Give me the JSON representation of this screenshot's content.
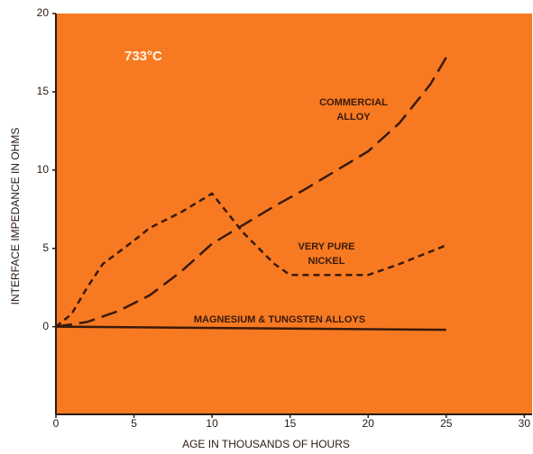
{
  "chart_data": {
    "type": "line",
    "xlabel": "AGE IN THOUSANDS OF HOURS",
    "ylabel": "INTERFACE IMPEDANCE IN OHMS",
    "annotations": [
      "733°C"
    ],
    "background": "#f77a22",
    "xlim": [
      0,
      30.5
    ],
    "ylim": [
      -5.6,
      20
    ],
    "xticks": [
      0,
      5,
      10,
      15,
      20,
      25,
      30
    ],
    "yticks": [
      0,
      5,
      10,
      15,
      20
    ],
    "series": [
      {
        "name": "COMMERCIAL ALLOY",
        "color": "#3a1a0a",
        "dash": "18 8",
        "x": [
          0,
          2,
          4,
          6,
          8,
          10,
          12,
          14,
          16,
          18,
          20,
          22,
          24,
          25
        ],
        "values": [
          0,
          0.3,
          1,
          2,
          3.5,
          5.3,
          6.5,
          7.7,
          8.8,
          10,
          11.2,
          13,
          15.5,
          17.2
        ]
      },
      {
        "name": "VERY PURE NICKEL",
        "color": "#3a1a0a",
        "dash": "7 5",
        "x": [
          0,
          1,
          2,
          3,
          5,
          6,
          8,
          10,
          12,
          14,
          15,
          17,
          20,
          22,
          25
        ],
        "values": [
          0,
          0.8,
          2.5,
          4,
          5.5,
          6.3,
          7.3,
          8.5,
          6,
          4,
          3.3,
          3.3,
          3.3,
          4,
          5.2
        ]
      },
      {
        "name": "MAGNESIUM & TUNGSTEN ALLOYS",
        "color": "#3a1a0a",
        "dash": "none",
        "x": [
          0,
          25
        ],
        "values": [
          0,
          -0.2
        ]
      }
    ]
  }
}
